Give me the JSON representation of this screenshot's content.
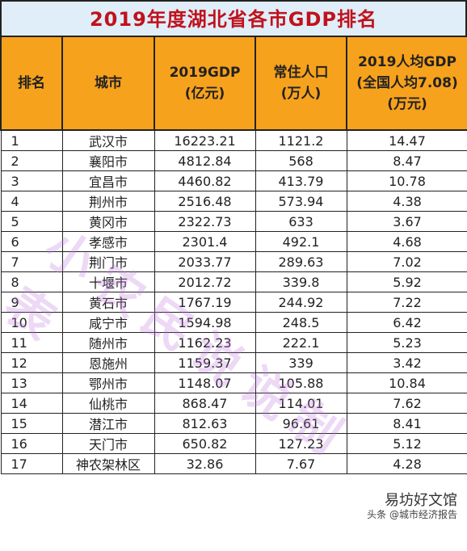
{
  "title": "2019年度湖北省各市GDP排名",
  "headers": {
    "rank": "排名",
    "city": "城市",
    "gdp_1": "2019GDP",
    "gdp_2": "(亿元)",
    "pop_1": "常住人口",
    "pop_2": "(万人)",
    "pc_1": "2019人均GDP",
    "pc_2": "(全国人均7.08)",
    "pc_3": "(万元)"
  },
  "rows": [
    {
      "rank": "1",
      "city": "武汉市",
      "gdp": "16223.21",
      "pop": "1121.2",
      "pc": "14.47"
    },
    {
      "rank": "2",
      "city": "襄阳市",
      "gdp": "4812.84",
      "pop": "568",
      "pc": "8.47"
    },
    {
      "rank": "3",
      "city": "宜昌市",
      "gdp": "4460.82",
      "pop": "413.79",
      "pc": "10.78"
    },
    {
      "rank": "4",
      "city": "荆州市",
      "gdp": "2516.48",
      "pop": "573.94",
      "pc": "4.38"
    },
    {
      "rank": "5",
      "city": "黄冈市",
      "gdp": "2322.73",
      "pop": "633",
      "pc": "3.67"
    },
    {
      "rank": "6",
      "city": "孝感市",
      "gdp": "2301.4",
      "pop": "492.1",
      "pc": "4.68"
    },
    {
      "rank": "7",
      "city": "荆门市",
      "gdp": "2033.77",
      "pop": "289.63",
      "pc": "7.02"
    },
    {
      "rank": "8",
      "city": "十堰市",
      "gdp": "2012.72",
      "pop": "339.8",
      "pc": "5.92"
    },
    {
      "rank": "9",
      "city": "黄石市",
      "gdp": "1767.19",
      "pop": "244.92",
      "pc": "7.22"
    },
    {
      "rank": "10",
      "city": "咸宁市",
      "gdp": "1594.98",
      "pop": "248.5",
      "pc": "6.42"
    },
    {
      "rank": "11",
      "city": "随州市",
      "gdp": "1162.23",
      "pop": "222.1",
      "pc": "5.23"
    },
    {
      "rank": "12",
      "city": "恩施州",
      "gdp": "1159.37",
      "pop": "339",
      "pc": "3.42"
    },
    {
      "rank": "13",
      "city": "鄂州市",
      "gdp": "1148.07",
      "pop": "105.88",
      "pc": "10.84"
    },
    {
      "rank": "14",
      "city": "仙桃市",
      "gdp": "868.47",
      "pop": "114.01",
      "pc": "7.62"
    },
    {
      "rank": "15",
      "city": "潜江市",
      "gdp": "812.63",
      "pop": "96.61",
      "pc": "8.41"
    },
    {
      "rank": "16",
      "city": "天门市",
      "gdp": "650.82",
      "pop": "127.23",
      "pc": "5.12"
    },
    {
      "rank": "17",
      "city": "神农架林区",
      "gdp": "32.86",
      "pop": "7.67",
      "pc": "4.28"
    }
  ],
  "watermark": "小农民说说制表",
  "badge": {
    "line1": "易坊好文馆",
    "line2": "头条 @城市经济报告"
  }
}
